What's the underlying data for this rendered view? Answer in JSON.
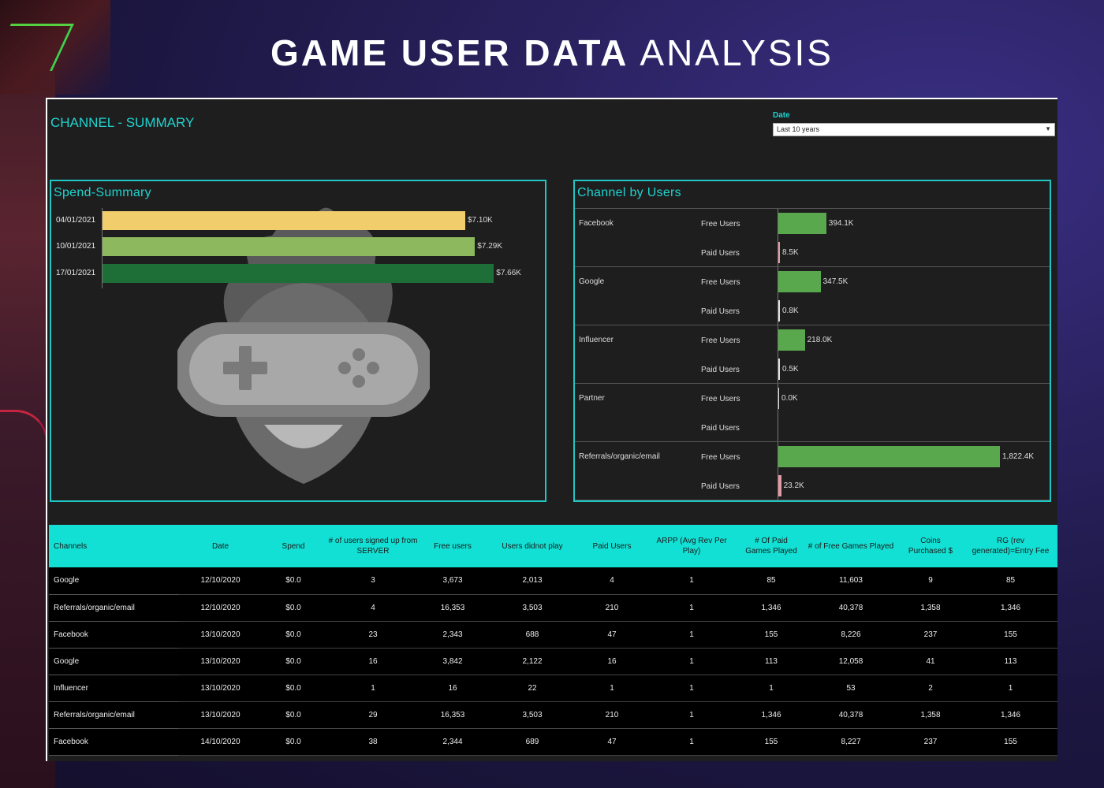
{
  "title": {
    "bold": "GAME USER DATA",
    "light": "ANALYSIS"
  },
  "dashboard": {
    "title": "CHANNEL - SUMMARY",
    "date_filter": {
      "label": "Date",
      "value": "Last 10 years"
    }
  },
  "spend_summary": {
    "title": "Spend-Summary",
    "bars": [
      {
        "label": "04/01/2021",
        "value": 7.1,
        "display": "$7.10K",
        "color": "#f2cd6c"
      },
      {
        "label": "10/01/2021",
        "value": 7.29,
        "display": "$7.29K",
        "color": "#8db85e"
      },
      {
        "label": "17/01/2021",
        "value": 7.66,
        "display": "$7.66K",
        "color": "#1e6e37"
      }
    ]
  },
  "channel_by_users": {
    "title": "Channel by Users",
    "sub_free": "Free Users",
    "sub_paid": "Paid Users",
    "channels": [
      {
        "name": "Facebook",
        "free": 394.1,
        "free_label": "394.1K",
        "paid": 8.5,
        "paid_label": "8.5K"
      },
      {
        "name": "Google",
        "free": 347.5,
        "free_label": "347.5K",
        "paid": 0.8,
        "paid_label": "0.8K"
      },
      {
        "name": "Influencer",
        "free": 218.0,
        "free_label": "218.0K",
        "paid": 0.5,
        "paid_label": "0.5K"
      },
      {
        "name": "Partner",
        "free": 0.0,
        "free_label": "0.0K",
        "paid": null,
        "paid_label": ""
      },
      {
        "name": "Referrals/organic/email",
        "free": 1822.4,
        "free_label": "1,822.4K",
        "paid": 23.2,
        "paid_label": "23.2K"
      }
    ],
    "colors": {
      "free": "#5aa84e",
      "paid": "#e49aa6"
    }
  },
  "table": {
    "headers": [
      "Channels",
      "Date",
      "Spend",
      "# of users signed up from SERVER",
      "Free users",
      "Users didnot play",
      "Paid Users",
      "ARPP (Avg Rev Per Play)",
      "# Of Paid Games Played",
      "# of Free Games Played",
      "Coins  Purchased $",
      "RG (rev generated)=Entry Fee"
    ],
    "rows": [
      [
        "Google",
        "12/10/2020",
        "$0.0",
        "3",
        "3,673",
        "2,013",
        "4",
        "1",
        "85",
        "11,603",
        "9",
        "85"
      ],
      [
        "Referrals/organic/email",
        "12/10/2020",
        "$0.0",
        "4",
        "16,353",
        "3,503",
        "210",
        "1",
        "1,346",
        "40,378",
        "1,358",
        "1,346"
      ],
      [
        "Facebook",
        "13/10/2020",
        "$0.0",
        "23",
        "2,343",
        "688",
        "47",
        "1",
        "155",
        "8,226",
        "237",
        "155"
      ],
      [
        "Google",
        "13/10/2020",
        "$0.0",
        "16",
        "3,842",
        "2,122",
        "16",
        "1",
        "113",
        "12,058",
        "41",
        "113"
      ],
      [
        "Influencer",
        "13/10/2020",
        "$0.0",
        "1",
        "16",
        "22",
        "1",
        "1",
        "1",
        "53",
        "2",
        "1"
      ],
      [
        "Referrals/organic/email",
        "13/10/2020",
        "$0.0",
        "29",
        "16,353",
        "3,503",
        "210",
        "1",
        "1,346",
        "40,378",
        "1,358",
        "1,346"
      ],
      [
        "Facebook",
        "14/10/2020",
        "$0.0",
        "38",
        "2,344",
        "689",
        "47",
        "1",
        "155",
        "8,227",
        "237",
        "155"
      ]
    ]
  }
}
